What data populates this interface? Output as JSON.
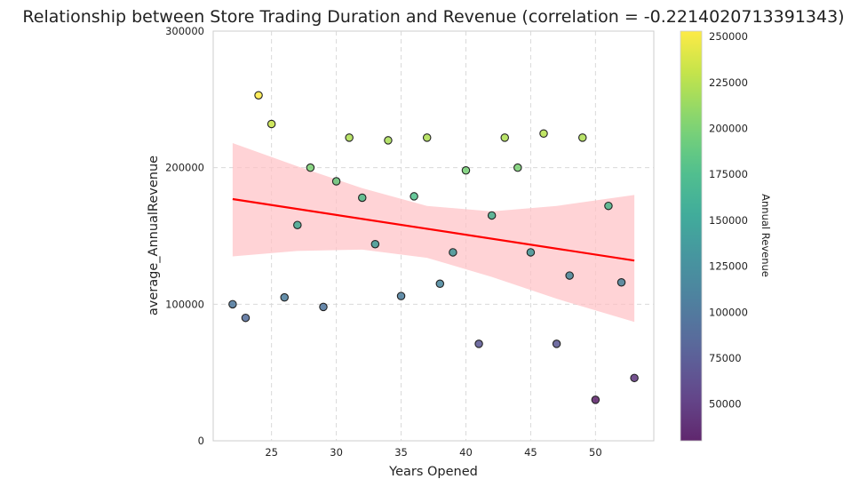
{
  "chart_data": {
    "type": "scatter",
    "title": "Relationship between Store Trading Duration and Revenue (correlation = -0.2214020713391343)",
    "xlabel": "Years Opened",
    "ylabel": "average_AnnualRevenue",
    "xlim": [
      20.5,
      54.5
    ],
    "ylim": [
      0,
      300000
    ],
    "xticks": [
      25,
      30,
      35,
      40,
      45,
      50
    ],
    "yticks": [
      0,
      100000,
      200000,
      300000
    ],
    "grid": true,
    "points": [
      {
        "x": 22,
        "y": 100000
      },
      {
        "x": 23,
        "y": 90000
      },
      {
        "x": 24,
        "y": 253000
      },
      {
        "x": 25,
        "y": 232000
      },
      {
        "x": 26,
        "y": 105000
      },
      {
        "x": 27,
        "y": 158000
      },
      {
        "x": 28,
        "y": 200000
      },
      {
        "x": 29,
        "y": 98000
      },
      {
        "x": 30,
        "y": 190000
      },
      {
        "x": 31,
        "y": 222000
      },
      {
        "x": 32,
        "y": 178000
      },
      {
        "x": 33,
        "y": 144000
      },
      {
        "x": 34,
        "y": 220000
      },
      {
        "x": 35,
        "y": 106000
      },
      {
        "x": 36,
        "y": 179000
      },
      {
        "x": 37,
        "y": 222000
      },
      {
        "x": 38,
        "y": 115000
      },
      {
        "x": 39,
        "y": 138000
      },
      {
        "x": 40,
        "y": 198000
      },
      {
        "x": 41,
        "y": 71000
      },
      {
        "x": 42,
        "y": 165000
      },
      {
        "x": 43,
        "y": 222000
      },
      {
        "x": 44,
        "y": 200000
      },
      {
        "x": 45,
        "y": 138000
      },
      {
        "x": 46,
        "y": 225000
      },
      {
        "x": 47,
        "y": 71000
      },
      {
        "x": 48,
        "y": 121000
      },
      {
        "x": 49,
        "y": 222000
      },
      {
        "x": 50,
        "y": 30000
      },
      {
        "x": 51,
        "y": 172000
      },
      {
        "x": 52,
        "y": 116000
      },
      {
        "x": 53,
        "y": 46000
      }
    ],
    "regression": {
      "x": [
        22,
        53
      ],
      "y": [
        177000,
        132000
      ],
      "color": "#ff0000",
      "ci_x": [
        22,
        27,
        32,
        37,
        42,
        47,
        53
      ],
      "ci_upper": [
        218000,
        201000,
        185000,
        172000,
        168000,
        172000,
        180000
      ],
      "ci_lower": [
        135000,
        139000,
        140000,
        134000,
        120000,
        104000,
        87000
      ],
      "ci_color": "#ffc0c4"
    },
    "colorbar": {
      "label": "Annual Revenue",
      "range": [
        30000,
        253000
      ],
      "ticks": [
        50000,
        75000,
        100000,
        125000,
        150000,
        175000,
        200000,
        225000,
        250000
      ],
      "colormap": "viridis"
    }
  }
}
